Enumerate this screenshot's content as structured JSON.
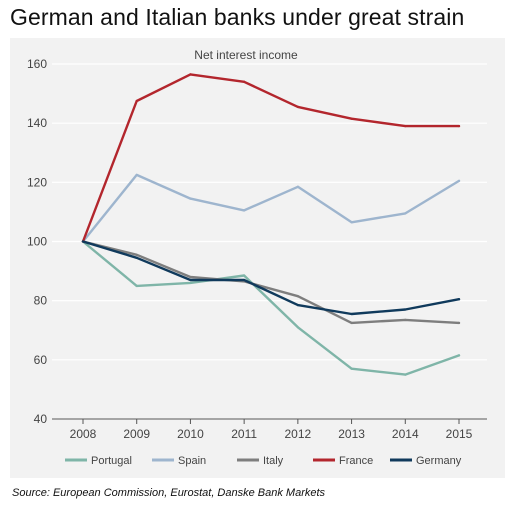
{
  "title": "German and Italian banks under great strain",
  "source": "Source: European Commission, Eurostat, Danske Bank Markets",
  "chart_data": {
    "type": "line",
    "title": "German and Italian banks under great strain",
    "subtitle": "Net interest income",
    "xlabel": "",
    "ylabel": "",
    "x": [
      "2008",
      "2009",
      "2010",
      "2011",
      "2012",
      "2013",
      "2014",
      "2015"
    ],
    "ylim": [
      40,
      160
    ],
    "yticks": [
      40,
      60,
      80,
      100,
      120,
      140,
      160
    ],
    "grid": true,
    "legend_position": "bottom",
    "series": [
      {
        "name": "Portugal",
        "color": "#7fb5a8",
        "values": [
          100,
          85,
          86,
          88.5,
          71,
          57,
          55,
          61.5
        ]
      },
      {
        "name": "Spain",
        "color": "#9eb5ce",
        "values": [
          100,
          122.5,
          114.5,
          110.5,
          118.5,
          106.5,
          109.5,
          120.5
        ]
      },
      {
        "name": "Italy",
        "color": "#7e7e7e",
        "values": [
          100,
          95.5,
          88,
          86.5,
          81.5,
          72.5,
          73.5,
          72.5
        ]
      },
      {
        "name": "France",
        "color": "#b3262d",
        "values": [
          100,
          147.5,
          156.5,
          154,
          145.5,
          141.5,
          139,
          139
        ]
      },
      {
        "name": "Germany",
        "color": "#103a5c",
        "values": [
          100,
          94.5,
          87,
          87,
          78.5,
          75.5,
          77,
          80.5
        ]
      }
    ]
  }
}
